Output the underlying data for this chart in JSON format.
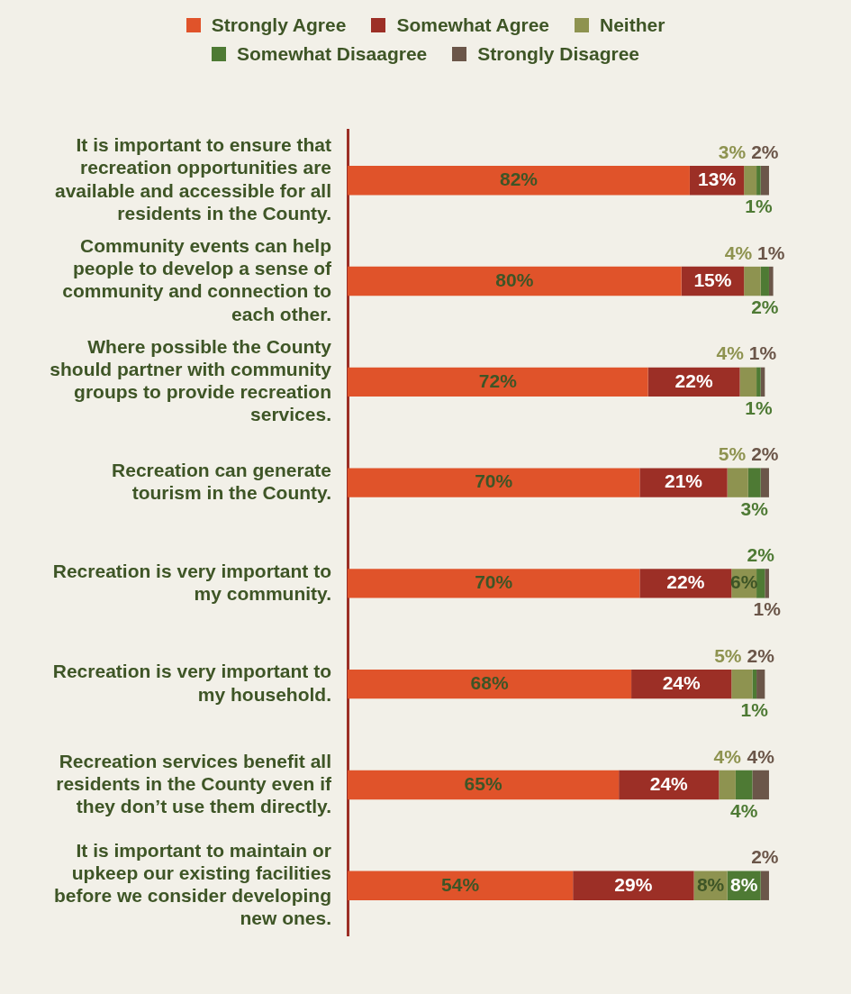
{
  "chart_data": {
    "type": "bar",
    "orientation": "horizontal",
    "stacked": true,
    "legend": "top",
    "grid": false,
    "categories": [
      "It is important to ensure that recreation opportunities are available and accessible for all residents in the County.",
      "Community events can help people to develop a sense of community and connection to each other.",
      "Where possible the County should partner with community groups to provide recreation services.",
      "Recreation can generate tourism in the County.",
      "Recreation is very important to my community.",
      "Recreation is very important to my household.",
      "Recreation services benefit all residents in the County even if they don’t use them directly.",
      "It is important to maintain or upkeep our existing facilities before we consider developing new ones."
    ],
    "series": [
      {
        "name": "Strongly Agree",
        "color": "#e0532a",
        "values": [
          82,
          80,
          72,
          70,
          70,
          68,
          65,
          54
        ],
        "value_labels": [
          "82%",
          "80%",
          "72%",
          "70%",
          "70%",
          "68%",
          "65%",
          "54%"
        ]
      },
      {
        "name": "Somewhat Agree",
        "color": "#9c2f26",
        "values": [
          13,
          15,
          22,
          21,
          22,
          24,
          24,
          29
        ],
        "value_labels": [
          "13%",
          "15%",
          "22%",
          "21%",
          "22%",
          "24%",
          "24%",
          "29%"
        ]
      },
      {
        "name": "Neither",
        "color": "#8e9350",
        "values": [
          3,
          4,
          4,
          5,
          6,
          5,
          4,
          8
        ],
        "value_labels": [
          "3%",
          "4%",
          "4%",
          "5%",
          "6%",
          "5%",
          "4%",
          "8%"
        ]
      },
      {
        "name": "Somewhat Disaagree",
        "color": "#4e7a34",
        "values": [
          1,
          2,
          1,
          3,
          2,
          1,
          4,
          8
        ],
        "value_labels": [
          "1%",
          "2%",
          "1%",
          "3%",
          "2%",
          "1%",
          "4%",
          "8%"
        ]
      },
      {
        "name": "Strongly Disagree",
        "color": "#6b5649",
        "values": [
          2,
          1,
          1,
          2,
          1,
          2,
          4,
          2
        ],
        "value_labels": [
          "2%",
          "1%",
          "1%",
          "2%",
          "1%",
          "2%",
          "4%",
          "2%"
        ]
      }
    ]
  }
}
